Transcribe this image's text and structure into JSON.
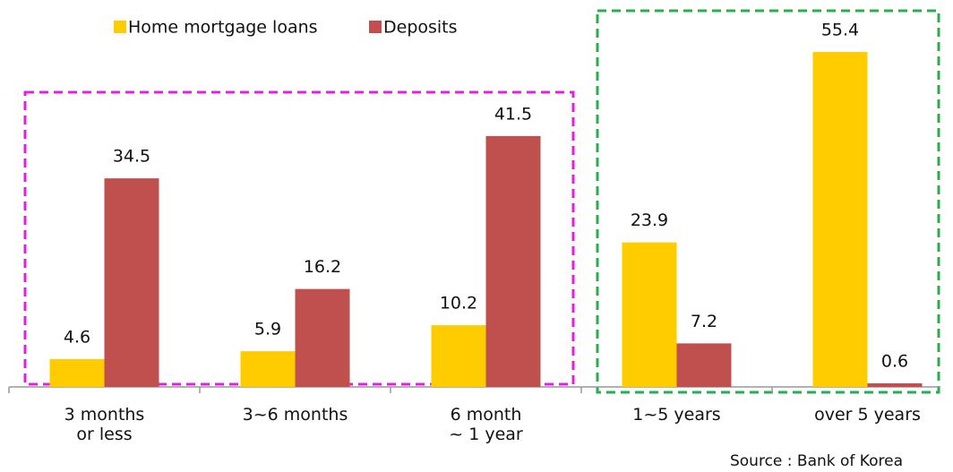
{
  "chart_data": {
    "type": "bar",
    "categories": [
      "3 months\nor less",
      "3~6 months",
      "6 month\n~ 1 year",
      "1~5 years",
      "over 5 years"
    ],
    "series": [
      {
        "name": "Home mortgage loans",
        "color": "#ffcc00",
        "values": [
          4.6,
          5.9,
          10.2,
          23.9,
          55.4
        ]
      },
      {
        "name": "Deposits",
        "color": "#c0504d",
        "values": [
          34.5,
          16.2,
          41.5,
          7.2,
          0.6
        ]
      }
    ],
    "source": "Source : Bank of Korea"
  }
}
